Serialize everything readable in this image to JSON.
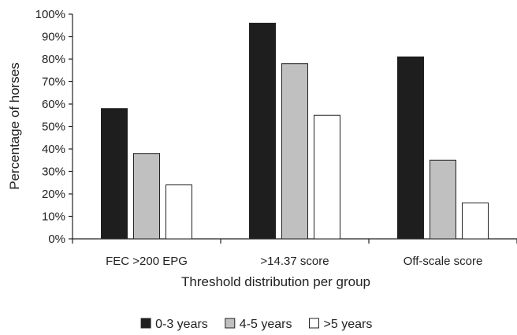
{
  "chart_data": {
    "type": "bar",
    "title": "",
    "xlabel": "Threshold distribution per group",
    "ylabel": "Percentage of horses",
    "categories": [
      "FEC >200 EPG",
      ">14.37 score",
      "Off-scale score"
    ],
    "series": [
      {
        "name": "0-3 years",
        "values": [
          58,
          96,
          81
        ],
        "color": "#1e1e1e"
      },
      {
        "name": "4-5 years",
        "values": [
          38,
          78,
          35
        ],
        "color": "#c0c0c0"
      },
      {
        "name": ">5 years",
        "values": [
          24,
          55,
          16
        ],
        "color": "#ffffff"
      }
    ],
    "ylim": [
      0,
      100
    ],
    "yticks": [
      "0%",
      "10%",
      "20%",
      "30%",
      "40%",
      "50%",
      "60%",
      "70%",
      "80%",
      "90%",
      "100%"
    ],
    "grid": false,
    "legend_position": "bottom"
  }
}
